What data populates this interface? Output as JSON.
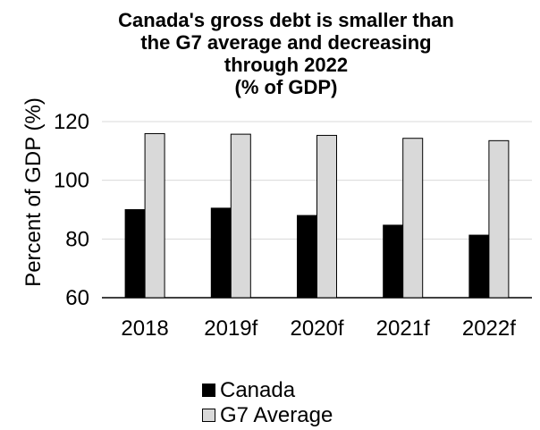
{
  "chart_data": {
    "type": "bar",
    "title_lines": [
      "Canada's gross debt is smaller than",
      "the G7 average and decreasing",
      "through 2022",
      "(% of GDP)"
    ],
    "xlabel": "",
    "ylabel": "Percent of GDP (%)",
    "ylim": [
      60,
      120
    ],
    "yticks": [
      60,
      80,
      100,
      120
    ],
    "grid": true,
    "legend_position": "bottom",
    "categories": [
      "2018",
      "2019f",
      "2020f",
      "2021f",
      "2022f"
    ],
    "series": [
      {
        "name": "Canada",
        "values": [
          90.0,
          90.5,
          88.0,
          84.7,
          81.3
        ],
        "color": "#000000"
      },
      {
        "name": "G7 Average",
        "values": [
          115.9,
          115.7,
          115.3,
          114.3,
          113.5
        ],
        "color": "#d9d9d9"
      }
    ]
  }
}
